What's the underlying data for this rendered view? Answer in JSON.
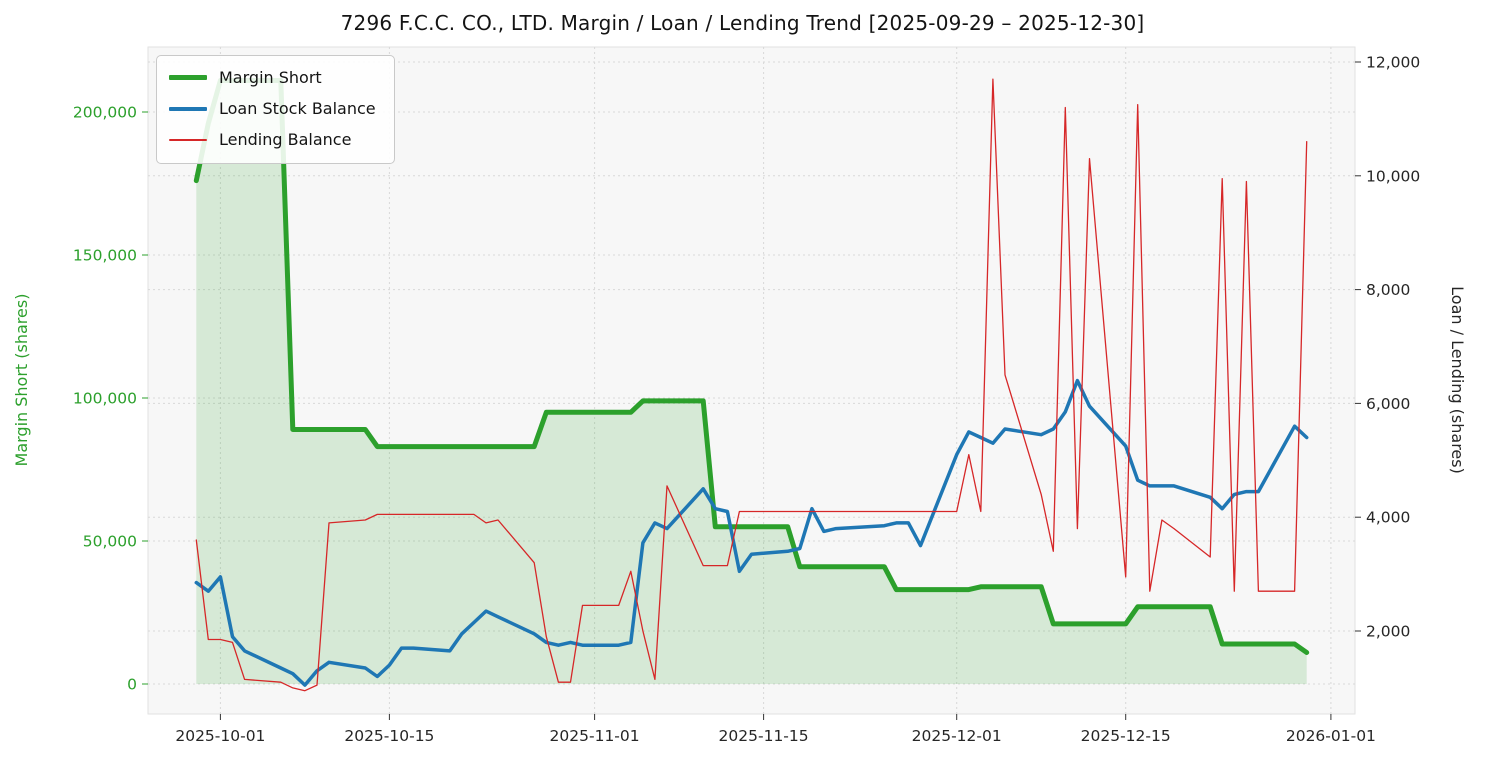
{
  "chart_data": {
    "type": "line",
    "title": "7296 F.C.C. CO., LTD. Margin / Loan / Lending Trend [2025-09-29 – 2025-12-30]",
    "grid": true,
    "background": "#ffffff",
    "plot_background": "#f7f7f7",
    "legend": {
      "position": "upper left"
    },
    "x_axis": {
      "domain": [
        "2025-09-25",
        "2026-01-03"
      ],
      "ticks": [
        "2025-10-01",
        "2025-10-15",
        "2025-11-01",
        "2025-11-15",
        "2025-12-01",
        "2025-12-15",
        "2026-01-01"
      ],
      "tick_labels": [
        "2025-10-01",
        "2025-10-15",
        "2025-11-01",
        "2025-11-15",
        "2025-12-01",
        "2025-12-15",
        "2026-01-01"
      ]
    },
    "left_axis": {
      "label": "Margin Short (shares)",
      "color": "#2ca02c",
      "ticks": [
        0,
        50000,
        100000,
        150000,
        200000
      ],
      "tick_labels": [
        "0",
        "50,000",
        "100,000",
        "150,000",
        "200,000"
      ]
    },
    "right_axis": {
      "label": "Loan / Lending (shares)",
      "color": "#262626",
      "ticks": [
        2000,
        4000,
        6000,
        8000,
        10000,
        12000
      ],
      "tick_labels": [
        "2,000",
        "4,000",
        "6,000",
        "8,000",
        "10,000",
        "12,000"
      ]
    },
    "x": [
      "2025-09-29",
      "2025-09-30",
      "2025-10-01",
      "2025-10-02",
      "2025-10-03",
      "2025-10-06",
      "2025-10-07",
      "2025-10-08",
      "2025-10-09",
      "2025-10-10",
      "2025-10-13",
      "2025-10-14",
      "2025-10-15",
      "2025-10-16",
      "2025-10-17",
      "2025-10-20",
      "2025-10-21",
      "2025-10-22",
      "2025-10-23",
      "2025-10-24",
      "2025-10-27",
      "2025-10-28",
      "2025-10-29",
      "2025-10-30",
      "2025-10-31",
      "2025-11-03",
      "2025-11-04",
      "2025-11-05",
      "2025-11-06",
      "2025-11-07",
      "2025-11-10",
      "2025-11-11",
      "2025-11-12",
      "2025-11-13",
      "2025-11-14",
      "2025-11-17",
      "2025-11-18",
      "2025-11-19",
      "2025-11-20",
      "2025-11-21",
      "2025-11-25",
      "2025-11-26",
      "2025-11-27",
      "2025-11-28",
      "2025-12-01",
      "2025-12-02",
      "2025-12-03",
      "2025-12-04",
      "2025-12-05",
      "2025-12-08",
      "2025-12-09",
      "2025-12-10",
      "2025-12-11",
      "2025-12-12",
      "2025-12-15",
      "2025-12-16",
      "2025-12-17",
      "2025-12-18",
      "2025-12-19",
      "2025-12-22",
      "2025-12-23",
      "2025-12-24",
      "2025-12-25",
      "2025-12-26",
      "2025-12-29",
      "2025-12-30"
    ],
    "series": [
      {
        "name": "Margin Short",
        "axis": "left",
        "color": "#2ca02c",
        "width": 5,
        "fill": true,
        "fill_opacity": 0.16,
        "values": [
          176000,
          196000,
          211000,
          211000,
          211000,
          211000,
          89000,
          89000,
          89000,
          89000,
          89000,
          83000,
          83000,
          83000,
          83000,
          83000,
          83000,
          83000,
          83000,
          83000,
          83000,
          95000,
          95000,
          95000,
          95000,
          95000,
          95000,
          99000,
          99000,
          99000,
          99000,
          55000,
          55000,
          55000,
          55000,
          55000,
          41000,
          41000,
          41000,
          41000,
          41000,
          33000,
          33000,
          33000,
          33000,
          33000,
          34000,
          34000,
          34000,
          34000,
          21000,
          21000,
          21000,
          21000,
          21000,
          27000,
          27000,
          27000,
          27000,
          27000,
          14000,
          14000,
          14000,
          14000,
          14000,
          11000
        ]
      },
      {
        "name": "Loan Stock Balance",
        "axis": "right",
        "color": "#1f77b4",
        "width": 3.5,
        "values": [
          2850,
          2700,
          2950,
          1900,
          1650,
          1350,
          1250,
          1050,
          1300,
          1450,
          1350,
          1200,
          1400,
          1700,
          1700,
          1650,
          1950,
          2150,
          2350,
          2250,
          1950,
          1800,
          1750,
          1800,
          1750,
          1750,
          1800,
          3550,
          3900,
          3800,
          4500,
          4150,
          4100,
          3050,
          3350,
          3400,
          3450,
          4150,
          3750,
          3800,
          3850,
          3900,
          3900,
          3500,
          5100,
          5500,
          5400,
          5300,
          5550,
          5450,
          5550,
          5850,
          6400,
          5950,
          5250,
          4650,
          4550,
          4550,
          4550,
          4350,
          4150,
          4400,
          4450,
          4450,
          5600,
          5400
        ]
      },
      {
        "name": "Lending Balance",
        "axis": "right",
        "color": "#d62728",
        "width": 1.3,
        "values": [
          3600,
          1850,
          1850,
          1800,
          1150,
          1100,
          1000,
          950,
          1050,
          3900,
          3950,
          4050,
          4050,
          4050,
          4050,
          4050,
          4050,
          4050,
          3900,
          3950,
          3200,
          1900,
          1100,
          1100,
          2450,
          2450,
          3050,
          2000,
          1150,
          4550,
          3150,
          3150,
          3150,
          4100,
          4100,
          4100,
          4100,
          4100,
          4100,
          4100,
          4100,
          4100,
          4100,
          4100,
          4100,
          5100,
          4100,
          11700,
          6500,
          4400,
          3400,
          11200,
          3800,
          10300,
          2950,
          11250,
          2700,
          3950,
          3800,
          3300,
          9950,
          2700,
          9900,
          2700,
          2700,
          10600
        ]
      }
    ]
  }
}
